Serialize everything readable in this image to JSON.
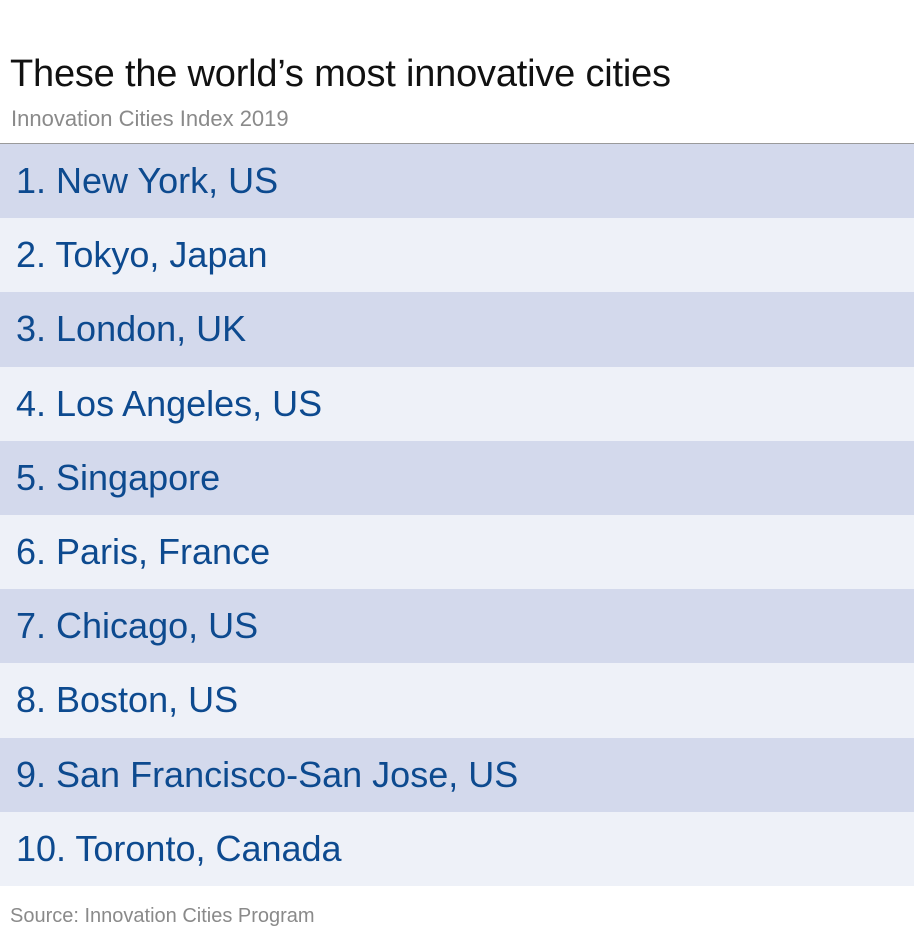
{
  "title": "These the world’s most innovative cities",
  "subtitle": "Innovation Cities Index 2019",
  "source": "Source: Innovation Cities Program",
  "colors": {
    "row_dark": "#d3d9ec",
    "row_light": "#eef1f8",
    "text_blue": "#0d4a8f"
  },
  "chart_data": {
    "type": "table",
    "title": "These the world’s most innovative cities",
    "subtitle": "Innovation Cities Index 2019",
    "rows": [
      {
        "label": "1. New York, US"
      },
      {
        "label": "2. Tokyo, Japan"
      },
      {
        "label": "3. London, UK"
      },
      {
        "label": "4. Los Angeles, US"
      },
      {
        "label": "5. Singapore"
      },
      {
        "label": "6. Paris, France"
      },
      {
        "label": "7. Chicago, US"
      },
      {
        "label": "8. Boston, US"
      },
      {
        "label": "9. San Francisco-San Jose, US"
      },
      {
        "label": "10. Toronto, Canada"
      }
    ]
  }
}
